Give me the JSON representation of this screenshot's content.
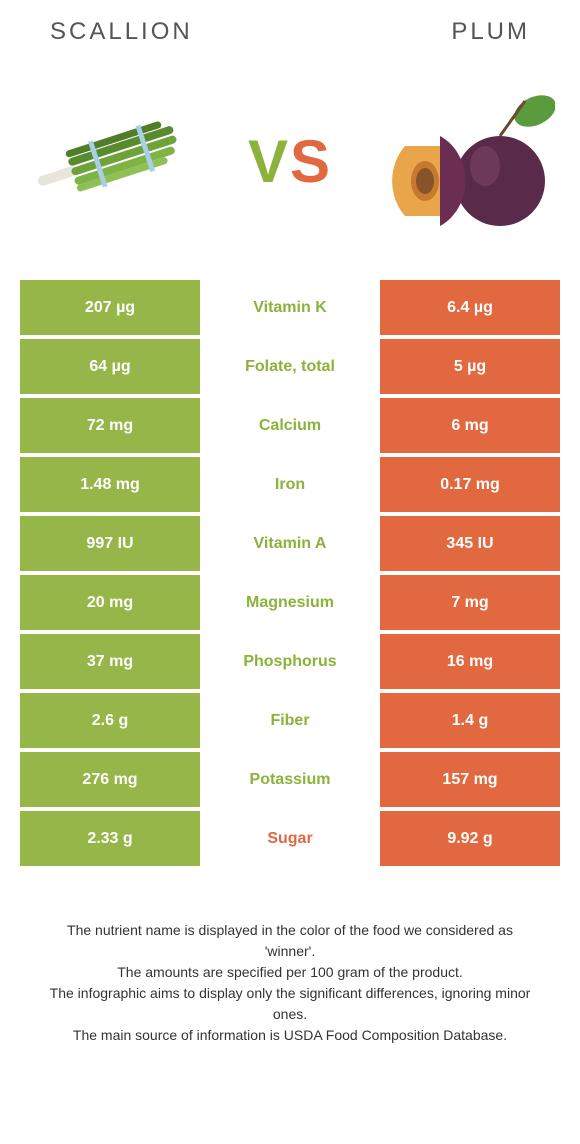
{
  "header": {
    "left": "SCALLION",
    "right": "PLUM"
  },
  "vs": {
    "v": "V",
    "s": "S"
  },
  "colors": {
    "scallion": "#97b64a",
    "plum": "#e2683f",
    "scallion_text": "#8bb23a",
    "plum_text": "#e2683f"
  },
  "rows": [
    {
      "left": "207 µg",
      "label": "Vitamin K",
      "right": "6.4 µg",
      "winner": "scallion"
    },
    {
      "left": "64 µg",
      "label": "Folate, total",
      "right": "5 µg",
      "winner": "scallion"
    },
    {
      "left": "72 mg",
      "label": "Calcium",
      "right": "6 mg",
      "winner": "scallion"
    },
    {
      "left": "1.48 mg",
      "label": "Iron",
      "right": "0.17 mg",
      "winner": "scallion"
    },
    {
      "left": "997 IU",
      "label": "Vitamin A",
      "right": "345 IU",
      "winner": "scallion"
    },
    {
      "left": "20 mg",
      "label": "Magnesium",
      "right": "7 mg",
      "winner": "scallion"
    },
    {
      "left": "37 mg",
      "label": "Phosphorus",
      "right": "16 mg",
      "winner": "scallion"
    },
    {
      "left": "2.6 g",
      "label": "Fiber",
      "right": "1.4 g",
      "winner": "scallion"
    },
    {
      "left": "276 mg",
      "label": "Potassium",
      "right": "157 mg",
      "winner": "scallion"
    },
    {
      "left": "2.33 g",
      "label": "Sugar",
      "right": "9.92 g",
      "winner": "plum"
    }
  ],
  "footer": {
    "line1": "The nutrient name is displayed in the color of the food we considered as 'winner'.",
    "line2": "The amounts are specified per 100 gram of the product.",
    "line3": "The infographic aims to display only the significant differences, ignoring minor ones.",
    "line4": "The main source of information is USDA Food Composition Database."
  }
}
